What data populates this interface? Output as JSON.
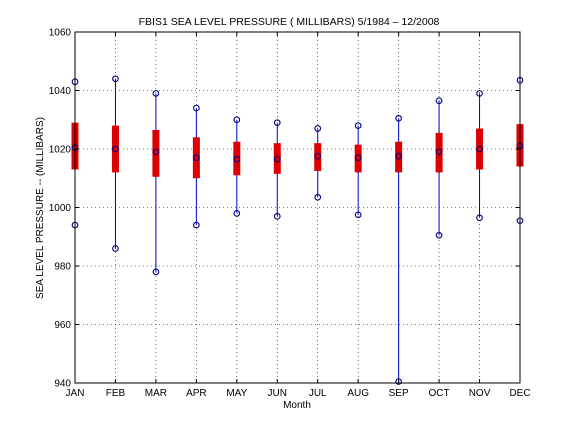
{
  "chart_data": {
    "type": "box",
    "title": "FBIS1  SEA LEVEL PRESSURE ( MILLIBARS) 5/1984 – 12/2008",
    "xlabel": "Month",
    "ylabel": "SEA LEVEL PRESSURE -- (MILLIBARS)",
    "ylim": [
      940,
      1060
    ],
    "yticks": [
      940,
      960,
      980,
      1000,
      1020,
      1040,
      1060
    ],
    "grid": true,
    "categories": [
      "JAN",
      "FEB",
      "MAR",
      "APR",
      "MAY",
      "JUN",
      "JUL",
      "AUG",
      "SEP",
      "OCT",
      "NOV",
      "DEC"
    ],
    "max": [
      1043,
      1044,
      1039,
      1034,
      1030,
      1029,
      1027,
      1028,
      1030.5,
      1036.5,
      1039,
      1043.5
    ],
    "q3": [
      1029,
      1028,
      1026.5,
      1024,
      1022.5,
      1022,
      1022,
      1021.5,
      1022.5,
      1025.5,
      1027,
      1028.5
    ],
    "mean": [
      1020.5,
      1020,
      1019,
      1017,
      1016.5,
      1016.5,
      1017.5,
      1017,
      1017.5,
      1019,
      1020,
      1021
    ],
    "q1": [
      1013,
      1012,
      1010.5,
      1010,
      1011,
      1011.5,
      1012.5,
      1012,
      1012,
      1012,
      1013,
      1014
    ],
    "min": [
      994,
      986,
      978,
      994,
      998,
      997,
      1003.5,
      997.5,
      940.5,
      990.5,
      996.5,
      995.5
    ],
    "colors": {
      "whisker": "#0000cc",
      "box": "#dd0000",
      "marker": "#000080",
      "grid": "#000000"
    }
  }
}
